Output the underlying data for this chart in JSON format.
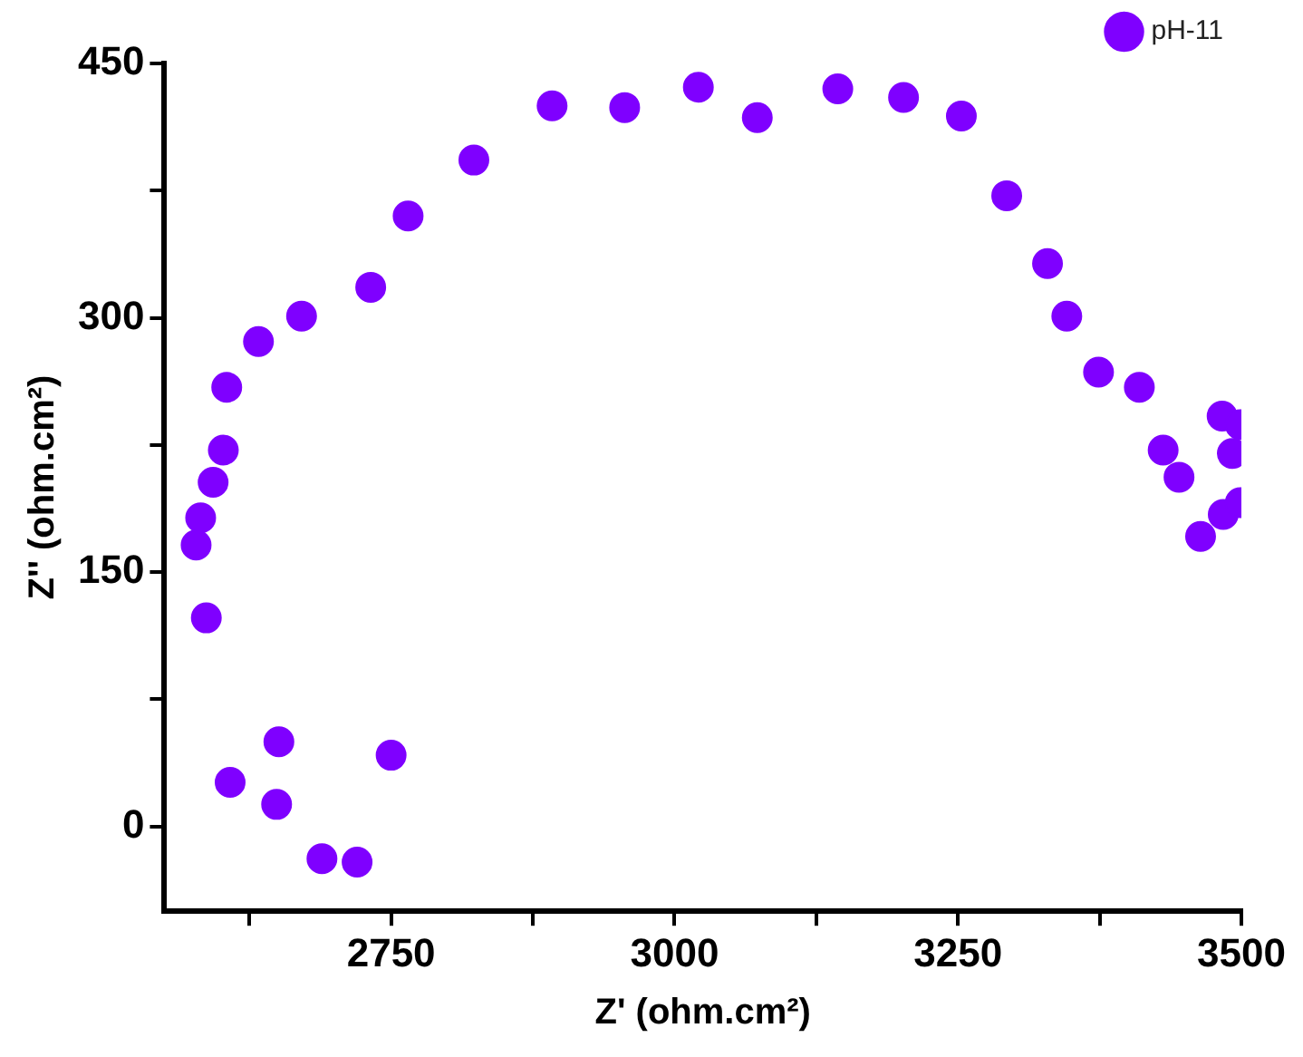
{
  "chart_data": {
    "type": "scatter",
    "xlabel": "Z' (ohm.cm²)",
    "ylabel": "Z'' (ohm.cm²)",
    "series": [
      {
        "name": "pH-11",
        "color": "#7f00ff",
        "x": [
          2578,
          2582,
          2593,
          2602,
          2605,
          2633,
          2671,
          2732,
          2765,
          2823,
          2892,
          2956,
          3021,
          3073,
          3144,
          3202,
          3253,
          3293,
          3329,
          3346,
          3374,
          3410,
          3431,
          3445,
          3464,
          3484,
          3483,
          3492,
          3499,
          3499,
          2587,
          2608,
          2651,
          2649,
          2689,
          2720,
          2750
        ],
        "values": [
          166,
          182,
          203,
          222,
          259,
          286,
          301,
          318,
          360,
          393,
          425,
          424,
          436,
          418,
          435,
          430,
          419,
          372,
          332,
          301,
          268,
          259,
          222,
          206,
          171,
          184,
          242,
          220,
          237,
          191,
          123,
          26,
          50,
          13,
          -19,
          -21,
          42
        ]
      }
    ],
    "xlim": [
      2550,
      3500
    ],
    "xticks": [
      {
        "value": 2625,
        "label": null
      },
      2750,
      {
        "value": 2875,
        "label": null
      },
      3000,
      {
        "value": 3125,
        "label": null
      },
      3250,
      {
        "value": 3375,
        "label": null
      },
      3500
    ],
    "ylim": [
      -50,
      450
    ],
    "yticks": [
      0,
      {
        "value": 75,
        "label": null
      },
      150,
      {
        "value": 225,
        "label": null
      },
      300,
      {
        "value": 375,
        "label": null
      },
      450
    ],
    "marker": "circle",
    "grid": false,
    "legend": "top right"
  }
}
